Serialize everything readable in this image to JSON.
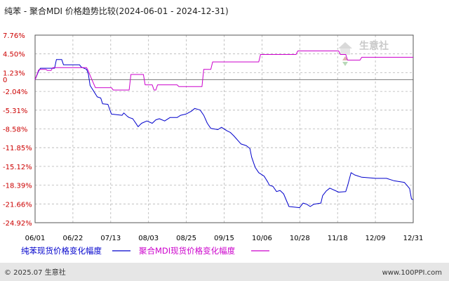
{
  "chart_data": {
    "type": "line",
    "title": "纯苯 - 聚合MDI 价格趋势比较(2024-06-01 - 2024-12-31)",
    "xlabel": "",
    "ylabel": "",
    "x_ticks": [
      "06/01",
      "06/22",
      "07/13",
      "08/03",
      "08/25",
      "09/15",
      "10/06",
      "10/28",
      "11/18",
      "12/09",
      "12/31"
    ],
    "y_ticks": [
      "7.76%",
      "4.50%",
      "1.23%",
      "-2.04%",
      "-5.31%",
      "-8.58%",
      "-11.85%",
      "-15.12%",
      "-18.39%",
      "-21.66%",
      "-24.92%"
    ],
    "ylim": [
      -24.92,
      7.76
    ],
    "grid": true,
    "legend_position": "bottom-left",
    "series": [
      {
        "name": "纯苯现货价格变化幅度",
        "color": "#0000cc",
        "points": [
          [
            "2024-06-01",
            0.0
          ],
          [
            "2024-06-03",
            1.5
          ],
          [
            "2024-06-04",
            2.0
          ],
          [
            "2024-06-12",
            2.0
          ],
          [
            "2024-06-13",
            3.5
          ],
          [
            "2024-06-16",
            3.5
          ],
          [
            "2024-06-17",
            2.6
          ],
          [
            "2024-06-26",
            2.6
          ],
          [
            "2024-06-27",
            2.2
          ],
          [
            "2024-06-30",
            1.8
          ],
          [
            "2024-07-01",
            1.0
          ],
          [
            "2024-07-02",
            -1.0
          ],
          [
            "2024-07-04",
            -2.0
          ],
          [
            "2024-07-06",
            -3.0
          ],
          [
            "2024-07-08",
            -3.2
          ],
          [
            "2024-07-09",
            -4.2
          ],
          [
            "2024-07-12",
            -4.3
          ],
          [
            "2024-07-14",
            -6.0
          ],
          [
            "2024-07-20",
            -6.2
          ],
          [
            "2024-07-21",
            -5.8
          ],
          [
            "2024-07-23",
            -6.4
          ],
          [
            "2024-07-24",
            -6.6
          ],
          [
            "2024-07-26",
            -6.8
          ],
          [
            "2024-07-28",
            -7.7
          ],
          [
            "2024-07-29",
            -8.2
          ],
          [
            "2024-07-31",
            -7.6
          ],
          [
            "2024-08-03",
            -7.2
          ],
          [
            "2024-08-06",
            -7.6
          ],
          [
            "2024-08-08",
            -7.0
          ],
          [
            "2024-08-10",
            -6.8
          ],
          [
            "2024-08-13",
            -7.2
          ],
          [
            "2024-08-16",
            -6.6
          ],
          [
            "2024-08-20",
            -6.6
          ],
          [
            "2024-08-22",
            -6.2
          ],
          [
            "2024-08-25",
            -6.0
          ],
          [
            "2024-08-28",
            -5.5
          ],
          [
            "2024-08-30",
            -5.0
          ],
          [
            "2024-09-02",
            -5.3
          ],
          [
            "2024-09-04",
            -6.2
          ],
          [
            "2024-09-06",
            -7.6
          ],
          [
            "2024-09-08",
            -8.5
          ],
          [
            "2024-09-12",
            -8.7
          ],
          [
            "2024-09-14",
            -8.3
          ],
          [
            "2024-09-17",
            -8.9
          ],
          [
            "2024-09-19",
            -9.2
          ],
          [
            "2024-09-21",
            -9.8
          ],
          [
            "2024-09-25",
            -11.2
          ],
          [
            "2024-09-28",
            -11.5
          ],
          [
            "2024-09-30",
            -12.0
          ],
          [
            "2024-10-01",
            -13.5
          ],
          [
            "2024-10-03",
            -15.3
          ],
          [
            "2024-10-05",
            -16.2
          ],
          [
            "2024-10-08",
            -16.8
          ],
          [
            "2024-10-10",
            -17.8
          ],
          [
            "2024-10-11",
            -18.4
          ],
          [
            "2024-10-13",
            -18.6
          ],
          [
            "2024-10-15",
            -19.5
          ],
          [
            "2024-10-17",
            -19.3
          ],
          [
            "2024-10-19",
            -19.9
          ],
          [
            "2024-10-22",
            -22.1
          ],
          [
            "2024-10-28",
            -22.3
          ],
          [
            "2024-10-30",
            -21.5
          ],
          [
            "2024-11-01",
            -21.7
          ],
          [
            "2024-11-03",
            -22.1
          ],
          [
            "2024-11-05",
            -21.7
          ],
          [
            "2024-11-07",
            -21.6
          ],
          [
            "2024-11-09",
            -21.5
          ],
          [
            "2024-11-10",
            -20.2
          ],
          [
            "2024-11-12",
            -19.4
          ],
          [
            "2024-11-14",
            -18.9
          ],
          [
            "2024-11-19",
            -19.6
          ],
          [
            "2024-11-23",
            -19.5
          ],
          [
            "2024-11-24",
            -18.5
          ],
          [
            "2024-11-26",
            -16.2
          ],
          [
            "2024-11-28",
            -16.6
          ],
          [
            "2024-12-02",
            -17.0
          ],
          [
            "2024-12-10",
            -17.2
          ],
          [
            "2024-12-16",
            -17.2
          ],
          [
            "2024-12-20",
            -17.6
          ],
          [
            "2024-12-26",
            -17.9
          ],
          [
            "2024-12-28",
            -18.6
          ],
          [
            "2024-12-29",
            -19.0
          ],
          [
            "2024-12-30",
            -20.8
          ],
          [
            "2024-12-31",
            -20.9
          ]
        ]
      },
      {
        "name": "聚合MDI现货价格变化幅度",
        "color": "#cc00cc",
        "points": [
          [
            "2024-06-01",
            0.0
          ],
          [
            "2024-06-03",
            1.7
          ],
          [
            "2024-06-04",
            1.8
          ],
          [
            "2024-06-07",
            1.8
          ],
          [
            "2024-06-08",
            1.6
          ],
          [
            "2024-06-10",
            1.6
          ],
          [
            "2024-06-11",
            2.1
          ],
          [
            "2024-06-30",
            2.1
          ],
          [
            "2024-07-01",
            1.5
          ],
          [
            "2024-07-03",
            0.0
          ],
          [
            "2024-07-05",
            -1.4
          ],
          [
            "2024-07-14",
            -1.4
          ],
          [
            "2024-07-15",
            -1.8
          ],
          [
            "2024-07-24",
            -1.8
          ],
          [
            "2024-07-25",
            0.9
          ],
          [
            "2024-08-01",
            0.9
          ],
          [
            "2024-08-02",
            -0.9
          ],
          [
            "2024-08-06",
            -0.9
          ],
          [
            "2024-08-07",
            -1.8
          ],
          [
            "2024-08-08",
            -1.8
          ],
          [
            "2024-08-09",
            -0.9
          ],
          [
            "2024-08-20",
            -0.9
          ],
          [
            "2024-08-21",
            -1.2
          ],
          [
            "2024-09-03",
            -1.2
          ],
          [
            "2024-09-04",
            1.8
          ],
          [
            "2024-09-08",
            1.8
          ],
          [
            "2024-09-09",
            3.1
          ],
          [
            "2024-10-05",
            3.1
          ],
          [
            "2024-10-06",
            4.4
          ],
          [
            "2024-10-26",
            4.4
          ],
          [
            "2024-10-27",
            5.0
          ],
          [
            "2024-11-19",
            5.0
          ],
          [
            "2024-11-20",
            4.4
          ],
          [
            "2024-11-23",
            4.4
          ],
          [
            "2024-11-24",
            3.4
          ],
          [
            "2024-12-01",
            3.4
          ],
          [
            "2024-12-02",
            3.9
          ],
          [
            "2024-12-31",
            3.9
          ]
        ]
      }
    ]
  },
  "footer": {
    "copyright": "© 2025.07 生意社",
    "site": "www.100PPI.com"
  },
  "watermark": {
    "text": "生意社"
  }
}
